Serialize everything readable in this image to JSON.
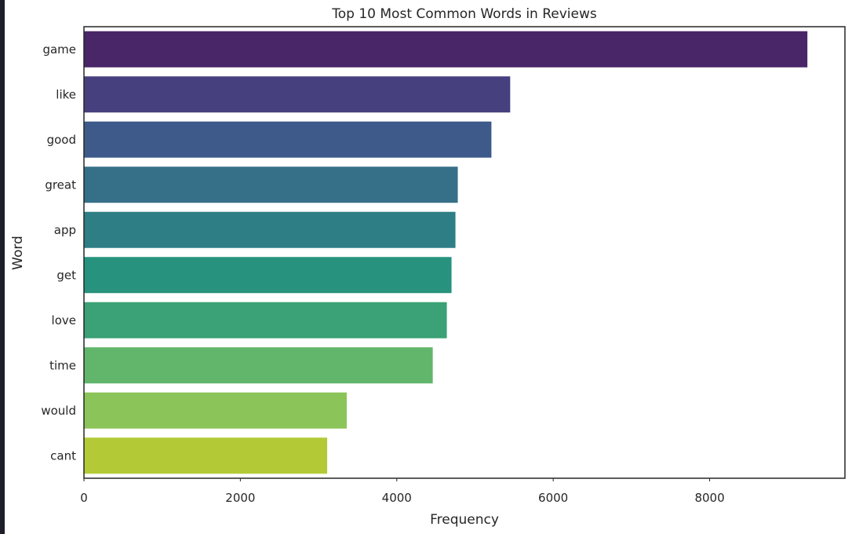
{
  "chart_data": {
    "type": "bar",
    "orientation": "horizontal",
    "title": "Top 10 Most Common Words in Reviews",
    "xlabel": "Frequency",
    "ylabel": "Word",
    "categories": [
      "game",
      "like",
      "good",
      "great",
      "app",
      "get",
      "love",
      "time",
      "would",
      "cant"
    ],
    "values": [
      9250,
      5450,
      5210,
      4780,
      4750,
      4700,
      4640,
      4460,
      3360,
      3110
    ],
    "xlim": [
      0,
      9730
    ],
    "xticks": [
      0,
      2000,
      4000,
      6000,
      8000
    ],
    "xtick_labels": [
      "0",
      "2000",
      "4000",
      "6000",
      "8000"
    ],
    "grid": false,
    "colors": [
      "#482668",
      "#46407f",
      "#3e5a8b",
      "#366f88",
      "#2e7f85",
      "#27937f",
      "#3ba176",
      "#61b66c",
      "#8bc55a",
      "#b3ca36"
    ]
  }
}
